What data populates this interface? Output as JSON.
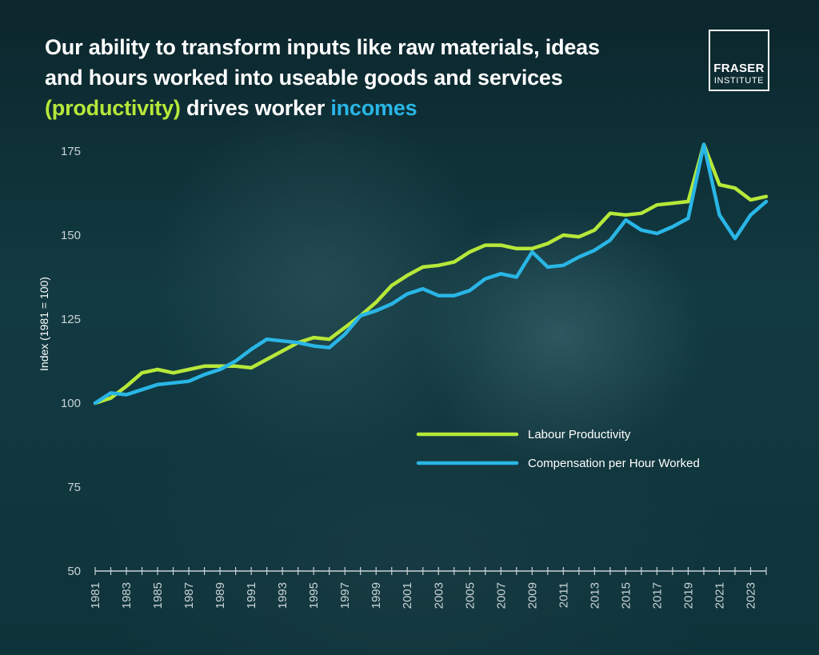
{
  "header": {
    "title_line1": "Our ability to transform inputs like raw materials, ideas",
    "title_line2": "and hours worked into useable goods and services",
    "title_highlight1": "(productivity)",
    "title_mid": " drives worker ",
    "title_highlight2": "incomes"
  },
  "logo": {
    "line1": "FRASER",
    "line2": "INSTITUTE"
  },
  "colors": {
    "productivity": "#b6e83a",
    "compensation": "#29b6e6",
    "axis": "#c8d3d6",
    "background": "#0d2a30"
  },
  "chart_data": {
    "type": "line",
    "title": "Our ability to transform inputs like raw materials, ideas and hours worked into useable goods and services (productivity) drives worker incomes",
    "ylabel": "Index (1981 = 100)",
    "xlabel": "",
    "ylim": [
      50,
      175
    ],
    "yticks": [
      50,
      75,
      100,
      125,
      150,
      175
    ],
    "xlim": [
      1981,
      2024
    ],
    "xtick_labels": [
      "1981",
      "1983",
      "1985",
      "1987",
      "1989",
      "1991",
      "1993",
      "1995",
      "1997",
      "1999",
      "2001",
      "2003",
      "2005",
      "2007",
      "2009",
      "2011",
      "2013",
      "2015",
      "2017",
      "2019",
      "2021",
      "2023"
    ],
    "legend_position": "center-right",
    "grid": false,
    "x": [
      1981,
      1982,
      1983,
      1984,
      1985,
      1986,
      1987,
      1988,
      1989,
      1990,
      1991,
      1992,
      1993,
      1994,
      1995,
      1996,
      1997,
      1998,
      1999,
      2000,
      2001,
      2002,
      2003,
      2004,
      2005,
      2006,
      2007,
      2008,
      2009,
      2010,
      2011,
      2012,
      2013,
      2014,
      2015,
      2016,
      2017,
      2018,
      2019,
      2020,
      2021,
      2022,
      2023,
      2024
    ],
    "series": [
      {
        "name": "Labour Productivity",
        "values": [
          100,
          101.5,
          105,
          109,
          110,
          109,
          110,
          111,
          111,
          111,
          110.5,
          113,
          115.5,
          118,
          119.5,
          119,
          122.5,
          126,
          130,
          135,
          138,
          140.5,
          141,
          142,
          145,
          147,
          147,
          146,
          146,
          147.5,
          150,
          149.5,
          151.5,
          156.5,
          156,
          156.5,
          159,
          159.5,
          160,
          177,
          165,
          164,
          160.5,
          161.5
        ]
      },
      {
        "name": "Compensation per Hour Worked",
        "values": [
          100,
          103,
          102.5,
          104,
          105.5,
          106,
          106.5,
          108.5,
          110,
          112.5,
          116,
          119,
          118.5,
          118,
          117,
          116.5,
          120.5,
          126,
          127.5,
          129.5,
          132.5,
          134,
          132,
          132,
          133.5,
          137,
          138.5,
          137.5,
          145,
          140.5,
          141,
          143.5,
          145.5,
          148.5,
          154.5,
          151.5,
          150.5,
          152.5,
          155,
          177,
          156,
          149,
          156,
          160
        ]
      }
    ]
  }
}
